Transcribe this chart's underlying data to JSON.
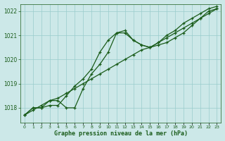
{
  "title": "Graphe pression niveau de la mer (hPa)",
  "background_color": "#cce8e8",
  "grid_color": "#99cccc",
  "line_color": "#1a5c1a",
  "x_labels": [
    "0",
    "1",
    "2",
    "3",
    "4",
    "5",
    "6",
    "7",
    "8",
    "9",
    "10",
    "11",
    "12",
    "13",
    "14",
    "15",
    "16",
    "17",
    "18",
    "19",
    "20",
    "21",
    "22",
    "23"
  ],
  "ylim": [
    1017.4,
    1022.3
  ],
  "yticks": [
    1018,
    1019,
    1020,
    1021,
    1022
  ],
  "series_straight": [
    1017.7,
    1017.9,
    1018.1,
    1018.3,
    1018.4,
    1018.6,
    1018.8,
    1019.0,
    1019.2,
    1019.4,
    1019.6,
    1019.8,
    1020.0,
    1020.2,
    1020.4,
    1020.5,
    1020.7,
    1020.9,
    1021.1,
    1021.3,
    1021.5,
    1021.7,
    1021.9,
    1022.1
  ],
  "series_main": [
    1017.7,
    1018.0,
    1018.0,
    1018.3,
    1018.3,
    1018.0,
    1018.0,
    1018.8,
    1019.4,
    1019.8,
    1020.3,
    1021.1,
    1021.1,
    1020.8,
    1020.6,
    1020.5,
    1020.6,
    1020.7,
    1020.9,
    1021.1,
    1021.4,
    1021.7,
    1022.0,
    1022.1
  ],
  "series_upper": [
    1017.7,
    1018.0,
    1018.0,
    1018.1,
    1018.1,
    1018.5,
    1018.9,
    1019.2,
    1019.6,
    1020.3,
    1020.8,
    1021.1,
    1021.2,
    1020.8,
    1020.6,
    1020.5,
    1020.7,
    1021.0,
    1021.2,
    1021.5,
    1021.7,
    1021.9,
    1022.1,
    1022.2
  ],
  "figsize": [
    3.2,
    2.0
  ],
  "dpi": 100
}
